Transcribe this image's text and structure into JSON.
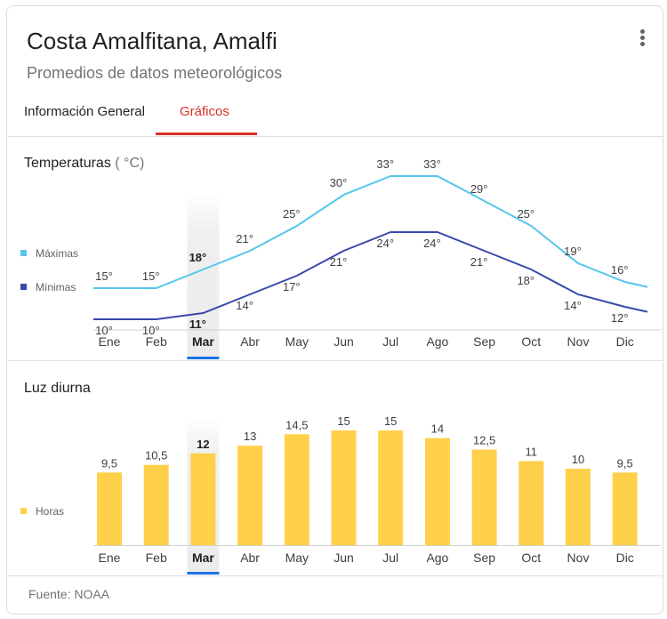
{
  "header": {
    "title": "Costa Amalfitana, Amalfi",
    "subtitle": "Promedios de datos meteorológicos",
    "menu_icon": "more-vert-icon"
  },
  "tabs": [
    {
      "label": "Información General",
      "active": false
    },
    {
      "label": "Gráficos",
      "active": true
    }
  ],
  "footer": {
    "source": "Fuente: NOAA"
  },
  "colors": {
    "max_line": "#54c6ec",
    "min_line": "#3949ab",
    "bars": "#ffd04a",
    "selected_month": "#1a73e8",
    "tab_active": "#d93025"
  },
  "chart_data": [
    {
      "type": "line",
      "title": "Temperaturas",
      "unit": "( °C)",
      "categories": [
        "Ene",
        "Feb",
        "Mar",
        "Abr",
        "May",
        "Jun",
        "Jul",
        "Ago",
        "Sep",
        "Oct",
        "Nov",
        "Dic"
      ],
      "selected_category": "Mar",
      "legend_position": "left",
      "series": [
        {
          "name": "Máximas",
          "values": [
            15,
            15,
            18,
            21,
            25,
            30,
            33,
            33,
            29,
            25,
            19,
            16
          ],
          "labels": [
            "15°",
            "15°",
            "18°",
            "21°",
            "25°",
            "30°",
            "33°",
            "33°",
            "29°",
            "25°",
            "19°",
            "16°"
          ]
        },
        {
          "name": "Mínimas",
          "values": [
            10,
            10,
            11,
            14,
            17,
            21,
            24,
            24,
            21,
            18,
            14,
            12
          ],
          "labels": [
            "10°",
            "10°",
            "11°",
            "14°",
            "17°",
            "21°",
            "24°",
            "24°",
            "21°",
            "18°",
            "14°",
            "12°"
          ]
        }
      ]
    },
    {
      "type": "bar",
      "title": "Luz diurna",
      "categories": [
        "Ene",
        "Feb",
        "Mar",
        "Abr",
        "May",
        "Jun",
        "Jul",
        "Ago",
        "Sep",
        "Oct",
        "Nov",
        "Dic"
      ],
      "selected_category": "Mar",
      "legend_position": "left",
      "series": [
        {
          "name": "Horas",
          "values": [
            9.5,
            10.5,
            12,
            13,
            14.5,
            15,
            15,
            14,
            12.5,
            11,
            10,
            9.5
          ],
          "labels": [
            "9,5",
            "10,5",
            "12",
            "13",
            "14,5",
            "15",
            "15",
            "14",
            "12,5",
            "11",
            "10",
            "9,5"
          ]
        }
      ]
    }
  ]
}
